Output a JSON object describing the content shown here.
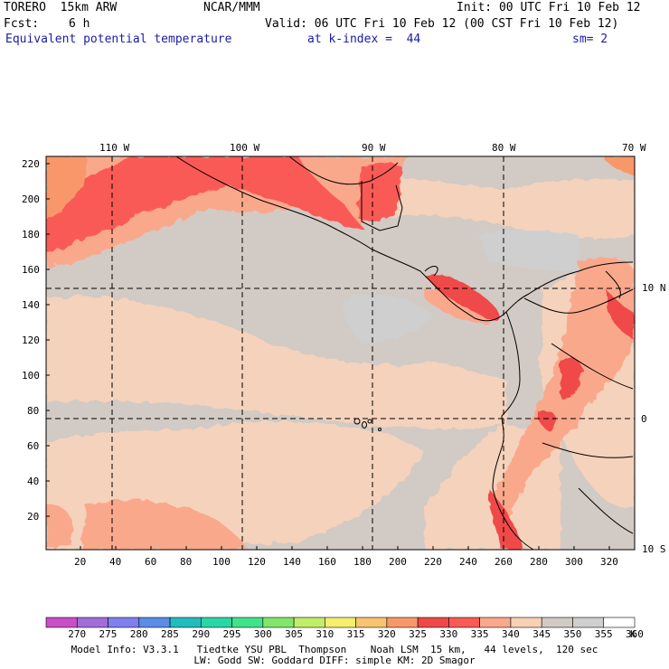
{
  "header": {
    "model": "TORERO  15km ARW",
    "org": "NCAR/MMM",
    "init": "Init: 00 UTC Fri 10 Feb 12",
    "fcst_label": "Fcst:",
    "fcst_value": "6 h",
    "valid": "Valid: 06 UTC Fri 10 Feb 12 (00 CST Fri 10 Feb 12)",
    "field": "Equivalent potential temperature",
    "level": "at k-index =  44",
    "smooth": "sm= 2"
  },
  "map": {
    "lon_labels": [
      "110 W",
      "100 W",
      "90 W",
      "80 W",
      "70 W"
    ],
    "lat_labels": [
      "10 N",
      "0",
      "10 S"
    ],
    "y_ticks": [
      "220",
      "200",
      "180",
      "160",
      "140",
      "120",
      "100",
      "80",
      "60",
      "40",
      "20"
    ],
    "x_ticks": [
      "20",
      "40",
      "60",
      "80",
      "100",
      "120",
      "140",
      "160",
      "180",
      "200",
      "220",
      "240",
      "260",
      "280",
      "300",
      "320"
    ]
  },
  "colorbar": {
    "unit": "K",
    "levels": [
      "270",
      "275",
      "280",
      "285",
      "290",
      "295",
      "300",
      "305",
      "310",
      "315",
      "320",
      "325",
      "330",
      "335",
      "340",
      "345",
      "350",
      "355",
      "360"
    ],
    "colors": [
      "#c84fc8",
      "#a26cd9",
      "#7f7ff0",
      "#5a8ce8",
      "#22bcbc",
      "#2ad6a6",
      "#3ee38a",
      "#82e66a",
      "#c0ee66",
      "#f5ee6e",
      "#f8c46e",
      "#f8986a",
      "#f04848",
      "#fa5a56",
      "#faa88c",
      "#f8d0b4",
      "#d2cac4",
      "#cfcfcf",
      "#ffffff"
    ]
  },
  "footer": {
    "line1": "Model Info: V3.3.1   Tiedtke YSU PBL  Thompson    Noah LSM  15 km,   44 levels,  120 sec",
    "line2": "LW: Godd SW: Goddard DIFF: simple KM: 2D Smagor"
  }
}
